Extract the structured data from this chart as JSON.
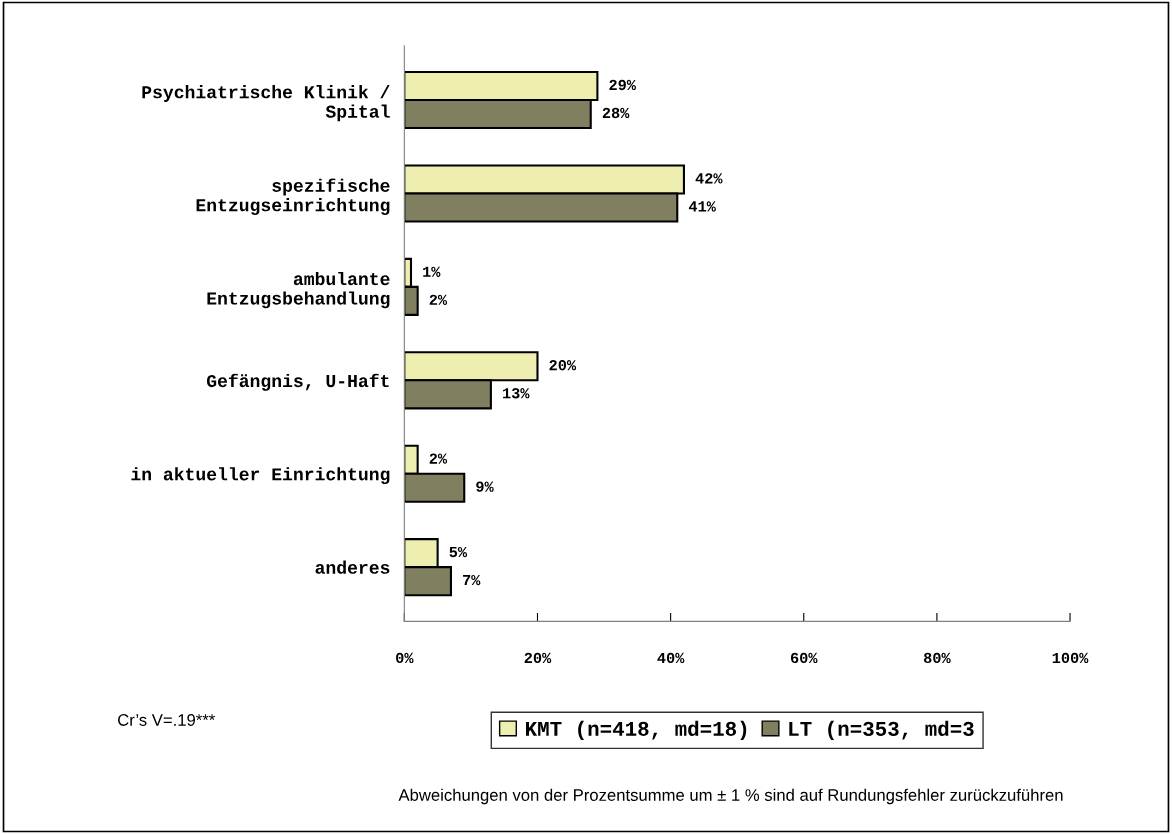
{
  "chart_data": {
    "type": "bar",
    "orientation": "horizontal",
    "categories": [
      "Psychiatrische Klinik /\nSpital",
      "spezifische\nEntzugseinrichtung",
      "ambulante\nEntzugsbehandlung",
      "Gefängnis, U-Haft",
      "in aktueller Einrichtung",
      "anderes"
    ],
    "series": [
      {
        "name": "KMT (n=418, md=18)",
        "color": "#eeeeb0",
        "values": [
          29,
          42,
          1,
          20,
          2,
          5
        ],
        "value_labels": [
          "29%",
          "42%",
          "1%",
          "20%",
          "2%",
          "5%"
        ]
      },
      {
        "name": "LT (n=353, md=3",
        "color": "#808060",
        "values": [
          28,
          41,
          2,
          13,
          9,
          7
        ],
        "value_labels": [
          "28%",
          "41%",
          "2%",
          "13%",
          "9%",
          "7%"
        ]
      }
    ],
    "xlim": [
      0,
      100
    ],
    "xticks": [
      {
        "value": 0,
        "label": "0%"
      },
      {
        "value": 20,
        "label": "20%"
      },
      {
        "value": 40,
        "label": "40%"
      },
      {
        "value": 60,
        "label": "60%"
      },
      {
        "value": 80,
        "label": "80%"
      },
      {
        "value": 100,
        "label": "100%"
      }
    ],
    "grid": false,
    "legend": "bottom",
    "annotations": [
      "Cr’s V=.19***",
      "Abweichungen von der Prozentsumme um ± 1 % sind auf Rundungsfehler zurückzuführen"
    ]
  }
}
